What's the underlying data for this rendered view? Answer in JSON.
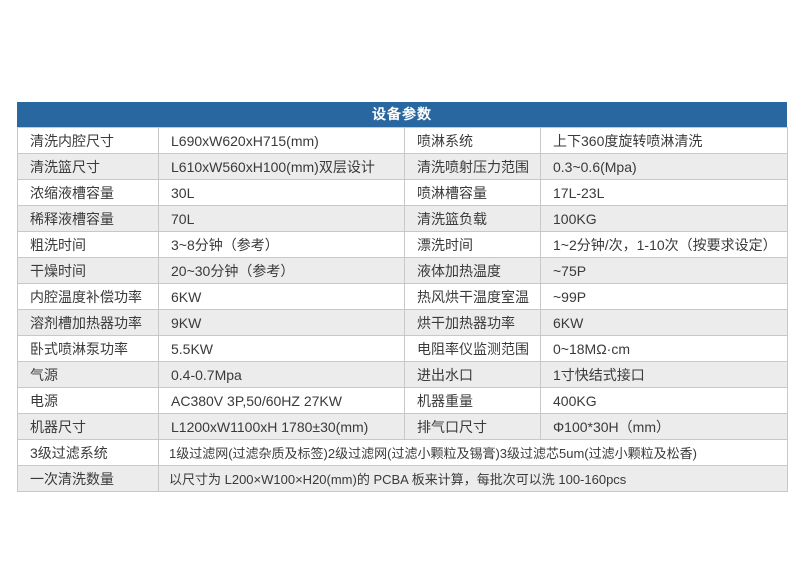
{
  "colors": {
    "header_bg": "#28679f",
    "header_text": "#ffffff",
    "row_alt_bg": "#ececec",
    "row_bg": "#ffffff",
    "border": "#c8c8c8",
    "text": "#3a3a3a"
  },
  "header": {
    "title": "设备参数"
  },
  "table": {
    "rows": [
      {
        "c0": "清洗内腔尺寸",
        "c1": "L690xW620xH715(mm)",
        "c2": "喷淋系统",
        "c3": "上下360度旋转喷淋清洗"
      },
      {
        "c0": "清洗篮尺寸",
        "c1": "L610xW560xH100(mm)双层设计",
        "c2": "清洗喷射压力范围",
        "c3": "0.3~0.6(Mpa)"
      },
      {
        "c0": "浓缩液槽容量",
        "c1": "30L",
        "c2": "喷淋槽容量",
        "c3": "17L-23L"
      },
      {
        "c0": "稀释液槽容量",
        "c1": "70L",
        "c2": "清洗篮负载",
        "c3": "100KG"
      },
      {
        "c0": "粗洗时间",
        "c1": "3~8分钟（参考）",
        "c2": "漂洗时间",
        "c3": "1~2分钟/次，1-10次（按要求设定）"
      },
      {
        "c0": "干燥时间",
        "c1": "20~30分钟（参考）",
        "c2": "液体加热温度",
        "c3": "~75P"
      },
      {
        "c0": "内腔温度补偿功率",
        "c1": "6KW",
        "c2": "热风烘干温度室温",
        "c3": "~99P"
      },
      {
        "c0": "溶剂槽加热器功率",
        "c1": "9KW",
        "c2": "烘干加热器功率",
        "c3": "6KW"
      },
      {
        "c0": "卧式喷淋泵功率",
        "c1": "5.5KW",
        "c2": "电阻率仪监测范围",
        "c3": "0~18MΩ·cm"
      },
      {
        "c0": "气源",
        "c1": "0.4-0.7Mpa",
        "c2": "进出水口",
        "c3": "1寸快结式接口"
      },
      {
        "c0": "电源",
        "c1": "AC380V 3P,50/60HZ 27KW",
        "c2": "机器重量",
        "c3": "400KG"
      },
      {
        "c0": "机器尺寸",
        "c1": "L1200xW1100xH 1780±30(mm)",
        "c2": "排气口尺寸",
        "c3": "Φ100*30H（mm）"
      },
      {
        "c0": "3级过滤系统",
        "c1": "1级过滤网(过滤杂质及标签)2级过滤网(过滤小颗粒及锡膏)3级过滤芯5um(过滤小颗粒及松香)"
      },
      {
        "c0": "一次清洗数量",
        "c1": "以尺寸为 L200×W100×H20(mm)的 PCBA 板来计算，每批次可以洗 100-160pcs"
      }
    ]
  }
}
